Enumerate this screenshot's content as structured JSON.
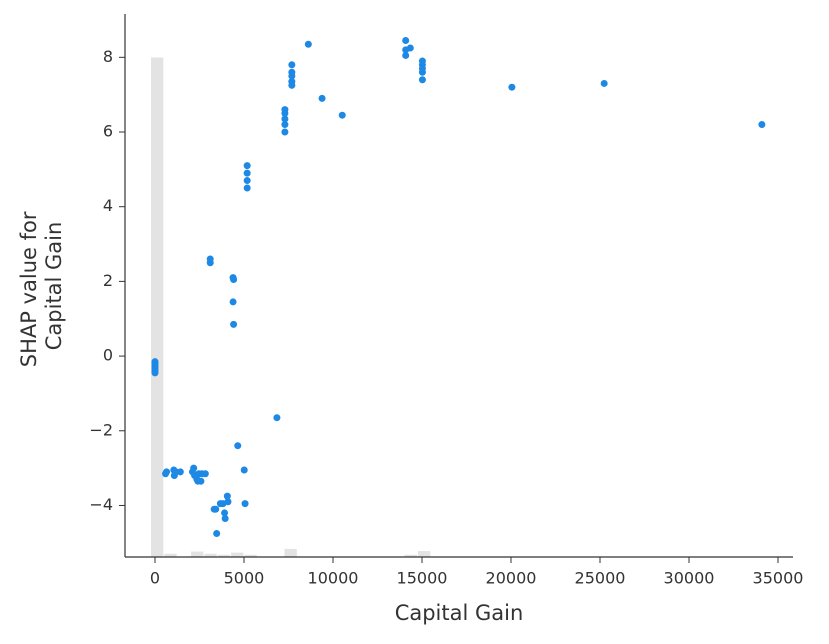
{
  "chart_data": {
    "type": "scatter",
    "xlabel": "Capital Gain",
    "ylabel": [
      "SHAP value for",
      "Capital Gain"
    ],
    "color": "#1e88e5",
    "x": [
      0,
      0,
      0,
      0,
      0,
      0,
      0,
      594,
      650,
      1055,
      1086,
      1173,
      1424,
      2105,
      2174,
      2228,
      2354,
      2407,
      2463,
      2580,
      2635,
      2829,
      3103,
      3103,
      3325,
      3411,
      3464,
      3674,
      3818,
      3908,
      3942,
      4064,
      4101,
      4386,
      4416,
      4386,
      4416,
      4650,
      5013,
      5060,
      5178,
      5178,
      5178,
      5178,
      6849,
      7298,
      7298,
      7298,
      7298,
      7298,
      7688,
      7688,
      7688,
      7688,
      7688,
      8614,
      9386,
      10520,
      14084,
      14084,
      14084,
      14344,
      15024,
      15024,
      15024,
      15024,
      15024,
      20051,
      25236,
      34095
    ],
    "values": [
      -0.15,
      -0.2,
      -0.25,
      -0.3,
      -0.35,
      -0.4,
      -0.45,
      -3.15,
      -3.1,
      -3.05,
      -3.2,
      -3.1,
      -3.1,
      -3.1,
      -3.0,
      -3.2,
      -3.3,
      -3.35,
      -3.15,
      -3.35,
      -3.15,
      -3.15,
      2.6,
      2.5,
      -4.1,
      -4.1,
      -4.75,
      -3.95,
      -3.95,
      -4.2,
      -4.35,
      -3.75,
      -3.9,
      2.1,
      2.05,
      1.45,
      0.85,
      -2.4,
      -3.05,
      -3.95,
      5.1,
      4.9,
      4.7,
      4.5,
      -1.65,
      6.6,
      6.5,
      6.35,
      6.2,
      6.0,
      7.8,
      7.6,
      7.5,
      7.35,
      7.25,
      8.35,
      6.9,
      6.45,
      8.45,
      8.2,
      8.05,
      8.25,
      7.9,
      7.8,
      7.7,
      7.6,
      7.4,
      7.2,
      7.3,
      6.2
    ],
    "histogram": {
      "bins": [
        -225,
        525,
        1275,
        2025,
        2775,
        3525,
        4275,
        5025,
        5775,
        6525,
        7275,
        8025,
        8775,
        9525,
        10275,
        11025,
        11775,
        12525,
        13275,
        14025,
        14775,
        15525
      ],
      "counts": [
        92,
        0.6,
        0,
        1,
        0.6,
        0.4,
        0.8,
        0.4,
        0,
        0,
        1.5,
        0,
        0,
        0,
        0,
        0,
        0,
        0,
        0,
        0.4,
        1.1
      ],
      "color": "#e3e3e3",
      "y2lim": [
        0,
        100
      ]
    },
    "xlim": [
      -1685,
      35843
    ],
    "xticks": [
      0,
      5000,
      10000,
      15000,
      20000,
      25000,
      30000,
      35000
    ],
    "ylim": [
      -5.38,
      9.16
    ],
    "yticks": [
      {
        "value": -4,
        "label": "−4"
      },
      {
        "value": -2,
        "label": "−2"
      },
      0,
      2,
      4,
      6,
      8
    ]
  }
}
